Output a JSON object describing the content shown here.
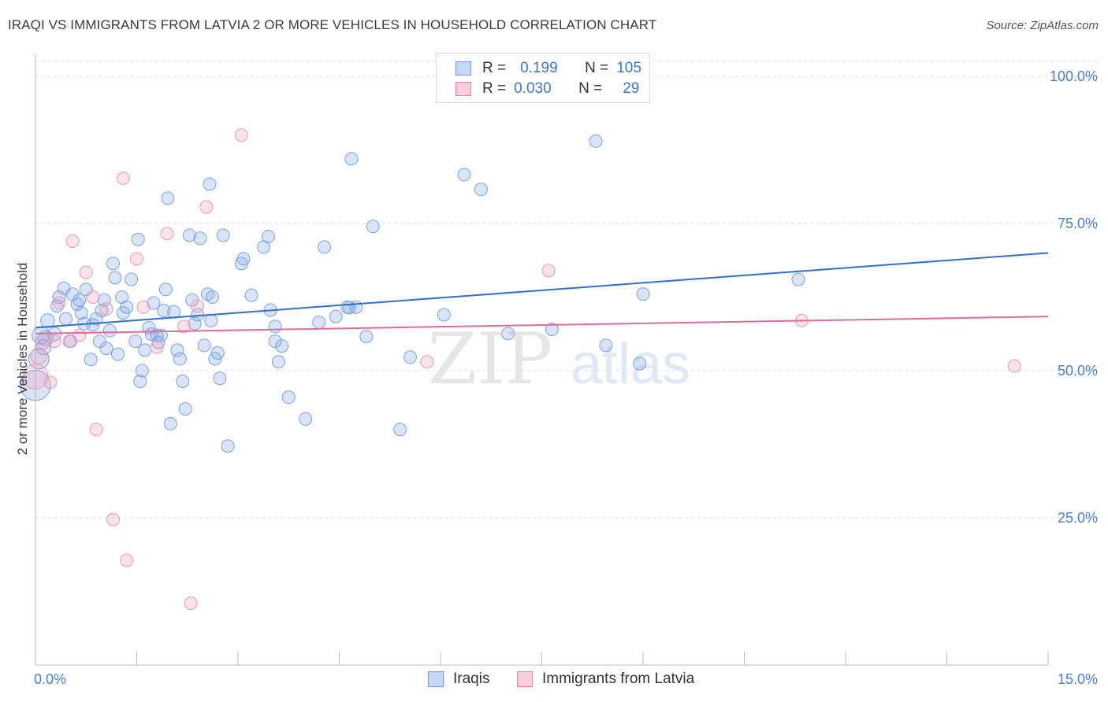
{
  "header": {
    "title": "IRAQI VS IMMIGRANTS FROM LATVIA 2 OR MORE VEHICLES IN HOUSEHOLD CORRELATION CHART",
    "source": "Source: ZipAtlas.com"
  },
  "watermark": {
    "zip": "ZIP",
    "atlas": "atlas"
  },
  "legend": {
    "rows": [
      {
        "r_label": "R =",
        "r_value": "0.199",
        "n_label": "N =",
        "n_value": "105",
        "color": "#6f9be0",
        "fill": "#c5d8f6"
      },
      {
        "r_label": "R =",
        "r_value": "0.030",
        "n_label": "N =",
        "n_value": "29",
        "color": "#e57fa3",
        "fill": "#f8cfdd"
      }
    ]
  },
  "bottom_legend": {
    "series1": "Iraqis",
    "series2": "Immigrants from Latvia"
  },
  "colors": {
    "blue_stroke": "#7aa3e0",
    "blue_fill": "rgba(130,170,230,0.30)",
    "blue_line": "#2f6fcf",
    "pink_stroke": "#e79ab5",
    "pink_fill": "rgba(240,160,190,0.30)",
    "pink_line": "#e06b93",
    "tick_text": "#4a7fd0",
    "grid": "#dedede"
  },
  "chart_data": {
    "type": "scatter",
    "title": "IRAQI VS IMMIGRANTS FROM LATVIA 2 OR MORE VEHICLES IN HOUSEHOLD CORRELATION CHART",
    "xlabel": "",
    "ylabel": "2 or more Vehicles in Household",
    "xlim": [
      0,
      15
    ],
    "ylim": [
      0,
      100
    ],
    "x_tick_labels": [
      "0.0%",
      "15.0%"
    ],
    "y_ticks": [
      25,
      50,
      75,
      100
    ],
    "y_tick_labels": [
      "25.0%",
      "50.0%",
      "75.0%",
      "100.0%"
    ],
    "grid": true,
    "series": [
      {
        "name": "Iraqis",
        "r": 0.199,
        "n": 105,
        "trend": [
          [
            0,
            57.3
          ],
          [
            15,
            70.0
          ]
        ],
        "points": [
          [
            0.0,
            47.5,
            2.4
          ],
          [
            0.05,
            52.0,
            1.6
          ],
          [
            0.08,
            56.0,
            1.4
          ],
          [
            0.12,
            54.0,
            1.2
          ],
          [
            0.15,
            55.5,
            1.2
          ],
          [
            0.18,
            58.5,
            1.1
          ],
          [
            0.28,
            56.2,
            1.1
          ],
          [
            0.32,
            61.0,
            1.0
          ],
          [
            0.35,
            62.5,
            1.0
          ],
          [
            0.42,
            64.0,
            1.0
          ],
          [
            0.45,
            58.8,
            1.0
          ],
          [
            0.52,
            55.0,
            1.0
          ],
          [
            0.55,
            63.0,
            1.0
          ],
          [
            0.62,
            61.3,
            1.0
          ],
          [
            0.65,
            62.0,
            1.0
          ],
          [
            0.68,
            59.8,
            1.0
          ],
          [
            0.72,
            58.0,
            1.0
          ],
          [
            0.75,
            63.8,
            1.0
          ],
          [
            0.82,
            51.9,
            1.0
          ],
          [
            0.85,
            57.8,
            1.0
          ],
          [
            0.9,
            58.8,
            1.0
          ],
          [
            0.95,
            55.0,
            1.0
          ],
          [
            0.98,
            60.2,
            1.0
          ],
          [
            1.02,
            62.0,
            1.0
          ],
          [
            1.05,
            53.8,
            1.0
          ],
          [
            1.1,
            56.8,
            1.0
          ],
          [
            1.15,
            68.2,
            1.0
          ],
          [
            1.18,
            65.8,
            1.0
          ],
          [
            1.22,
            52.8,
            1.0
          ],
          [
            1.28,
            62.5,
            1.0
          ],
          [
            1.3,
            59.8,
            1.0
          ],
          [
            1.35,
            60.8,
            1.0
          ],
          [
            1.42,
            65.5,
            1.0
          ],
          [
            1.48,
            55.0,
            1.0
          ],
          [
            1.52,
            72.3,
            1.0
          ],
          [
            1.55,
            48.2,
            1.0
          ],
          [
            1.58,
            50.0,
            1.0
          ],
          [
            1.62,
            53.5,
            1.0
          ],
          [
            1.68,
            57.3,
            1.0
          ],
          [
            1.72,
            56.2,
            1.0
          ],
          [
            1.75,
            61.5,
            1.0
          ],
          [
            1.8,
            56.0,
            1.0
          ],
          [
            1.82,
            54.8,
            1.0
          ],
          [
            1.86,
            56.0,
            1.0
          ],
          [
            1.9,
            60.2,
            1.0
          ],
          [
            1.93,
            63.8,
            1.0
          ],
          [
            1.96,
            79.3,
            1.0
          ],
          [
            2.0,
            41.0,
            1.0
          ],
          [
            2.05,
            60.0,
            1.0
          ],
          [
            2.1,
            53.5,
            1.0
          ],
          [
            2.14,
            52.0,
            1.0
          ],
          [
            2.18,
            48.2,
            1.0
          ],
          [
            2.22,
            43.5,
            1.0
          ],
          [
            2.28,
            73.0,
            1.0
          ],
          [
            2.32,
            62.0,
            1.0
          ],
          [
            2.36,
            58.0,
            1.0
          ],
          [
            2.4,
            59.5,
            1.0
          ],
          [
            2.44,
            72.5,
            1.0
          ],
          [
            2.5,
            54.3,
            1.0
          ],
          [
            2.55,
            63.0,
            1.0
          ],
          [
            2.58,
            81.7,
            1.0
          ],
          [
            2.6,
            58.5,
            1.0
          ],
          [
            2.62,
            62.5,
            1.0
          ],
          [
            2.66,
            52.0,
            1.0
          ],
          [
            2.7,
            53.0,
            1.0
          ],
          [
            2.73,
            48.7,
            1.0
          ],
          [
            2.78,
            73.0,
            1.0
          ],
          [
            2.85,
            37.2,
            1.0
          ],
          [
            3.05,
            68.2,
            1.0
          ],
          [
            3.08,
            69.0,
            1.0
          ],
          [
            3.2,
            62.8,
            1.0
          ],
          [
            3.38,
            71.0,
            1.0
          ],
          [
            3.45,
            72.8,
            1.0
          ],
          [
            3.48,
            60.3,
            1.0
          ],
          [
            3.55,
            57.5,
            1.0
          ],
          [
            3.6,
            51.5,
            1.0
          ],
          [
            3.65,
            54.2,
            1.0
          ],
          [
            3.55,
            55.0,
            1.0
          ],
          [
            3.75,
            45.5,
            1.0
          ],
          [
            4.0,
            41.8,
            1.0
          ],
          [
            4.2,
            58.2,
            1.0
          ],
          [
            4.28,
            71.0,
            1.0
          ],
          [
            4.45,
            59.2,
            1.0
          ],
          [
            4.62,
            60.8,
            1.0
          ],
          [
            4.75,
            60.8,
            1.0
          ],
          [
            4.65,
            60.7,
            1.0
          ],
          [
            4.68,
            86.0,
            1.0
          ],
          [
            4.9,
            55.8,
            1.0
          ],
          [
            5.0,
            74.5,
            1.0
          ],
          [
            5.4,
            40.0,
            1.0
          ],
          [
            5.55,
            52.3,
            1.0
          ],
          [
            6.05,
            59.5,
            1.0
          ],
          [
            6.35,
            83.3,
            1.0
          ],
          [
            6.6,
            80.8,
            1.0
          ],
          [
            7.0,
            56.3,
            1.0
          ],
          [
            7.65,
            57.0,
            1.0
          ],
          [
            8.3,
            89.0,
            1.0
          ],
          [
            8.45,
            54.3,
            1.0
          ],
          [
            8.95,
            51.2,
            1.0
          ],
          [
            9.0,
            63.0,
            1.0
          ],
          [
            11.3,
            65.5,
            1.0
          ]
        ]
      },
      {
        "name": "Immigrants from Latvia",
        "r": 0.03,
        "n": 29,
        "trend": [
          [
            0,
            56.3
          ],
          [
            15,
            59.2
          ]
        ],
        "points": [
          [
            0.0,
            49.0,
            2.0
          ],
          [
            0.05,
            52.5,
            1.3
          ],
          [
            0.12,
            55.0,
            1.2
          ],
          [
            0.22,
            48.0,
            1.0
          ],
          [
            0.28,
            55.0,
            1.0
          ],
          [
            0.35,
            61.5,
            1.0
          ],
          [
            0.5,
            55.0,
            1.0
          ],
          [
            0.55,
            72.0,
            1.0
          ],
          [
            0.65,
            56.0,
            1.0
          ],
          [
            0.75,
            66.7,
            1.0
          ],
          [
            0.85,
            62.5,
            1.0
          ],
          [
            0.9,
            40.0,
            1.0
          ],
          [
            1.05,
            60.5,
            1.0
          ],
          [
            1.15,
            24.7,
            1.0
          ],
          [
            1.3,
            82.7,
            1.0
          ],
          [
            1.35,
            17.8,
            1.0
          ],
          [
            1.5,
            69.0,
            1.0
          ],
          [
            1.6,
            60.8,
            1.0
          ],
          [
            1.8,
            54.0,
            1.0
          ],
          [
            1.95,
            73.3,
            1.0
          ],
          [
            2.2,
            57.5,
            1.0
          ],
          [
            2.3,
            10.5,
            1.0
          ],
          [
            2.4,
            61.0,
            1.0
          ],
          [
            2.53,
            77.8,
            1.0
          ],
          [
            3.05,
            90.0,
            1.0
          ],
          [
            5.8,
            51.5,
            1.0
          ],
          [
            7.6,
            67.0,
            1.0
          ],
          [
            11.35,
            58.5,
            1.0
          ],
          [
            14.5,
            50.8,
            1.0
          ]
        ]
      }
    ]
  }
}
